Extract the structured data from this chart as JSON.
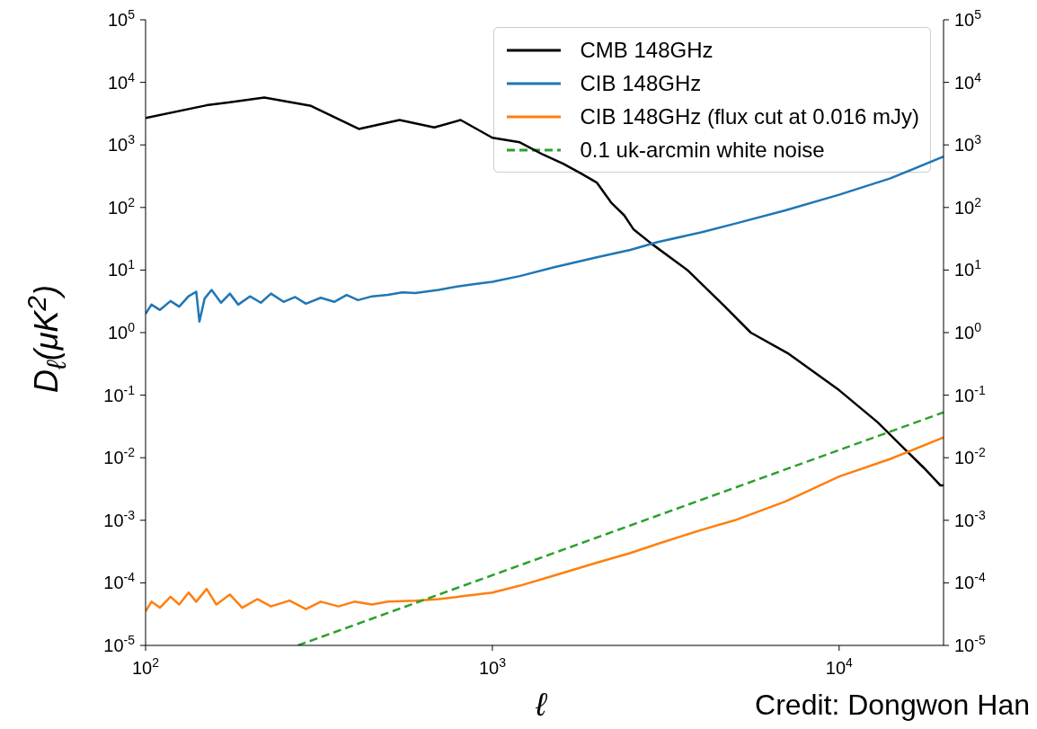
{
  "chart_data": {
    "type": "line",
    "xlabel": "ℓ",
    "ylabel": "D$_{ℓ}$(μK$^{2}$)",
    "xlim": [
      100,
      20000
    ],
    "xticks": [
      {
        "value": 100,
        "label": "10$^{2}$"
      },
      {
        "value": 1000,
        "label": "10$^{3}$"
      },
      {
        "value": 10000,
        "label": "10$^{4}$"
      }
    ],
    "ylim": [
      1e-05,
      100000
    ],
    "yticks": [
      {
        "value": 1e-05,
        "label": "10$^{-5}$"
      },
      {
        "value": 0.0001,
        "label": "10$^{-4}$"
      },
      {
        "value": 0.001,
        "label": "10$^{-3}$"
      },
      {
        "value": 0.01,
        "label": "10$^{-2}$"
      },
      {
        "value": 0.1,
        "label": "10$^{-1}$"
      },
      {
        "value": 1,
        "label": "10$^{0}$"
      },
      {
        "value": 10,
        "label": "10$^{1}$"
      },
      {
        "value": 100,
        "label": "10$^{2}$"
      },
      {
        "value": 1000,
        "label": "10$^{3}$"
      },
      {
        "value": 10000,
        "label": "10$^{4}$"
      },
      {
        "value": 100000,
        "label": "10$^{5}$"
      }
    ],
    "log": "xy",
    "legend": "top right",
    "series": [
      {
        "name": "CMB 148GHz",
        "color": "#000000",
        "x": [
          100,
          150,
          220,
          300,
          412,
          540,
          680,
          810,
          1000,
          1200,
          1400,
          1600,
          1800,
          2000,
          2200,
          2400,
          2550,
          2860,
          3650,
          4650,
          5560,
          7100,
          10000,
          12900,
          15500,
          17500,
          19600,
          20000
        ],
        "values": [
          2700,
          4300,
          5700,
          4200,
          1800,
          2500,
          1900,
          2500,
          1300,
          1100,
          700,
          500,
          350,
          250,
          120,
          75,
          45,
          27,
          10,
          2.7,
          1,
          0.47,
          0.12,
          0.037,
          0.0135,
          0.007,
          0.0036,
          0.0036
        ]
      },
      {
        "name": "CIB 148GHz",
        "color": "#1f77b4",
        "x": [
          100,
          104,
          110,
          118,
          125,
          133,
          140,
          143,
          148,
          155,
          165,
          175,
          185,
          200,
          215,
          230,
          250,
          270,
          290,
          320,
          350,
          380,
          410,
          450,
          500,
          550,
          600,
          700,
          800,
          900,
          1000,
          1200,
          1500,
          2000,
          2500,
          3000,
          4000,
          5000,
          7000,
          10000,
          14000,
          20000
        ],
        "values": [
          2.0,
          2.8,
          2.3,
          3.2,
          2.6,
          3.8,
          4.5,
          1.5,
          3.5,
          4.8,
          3.0,
          4.2,
          2.8,
          3.8,
          3.0,
          4.2,
          3.1,
          3.7,
          2.9,
          3.6,
          3.1,
          4.0,
          3.3,
          3.8,
          4.0,
          4.4,
          4.3,
          4.8,
          5.5,
          6.0,
          6.5,
          8,
          11,
          16,
          21,
          28,
          40,
          55,
          90,
          160,
          290,
          650
        ]
      },
      {
        "name": "CIB 148GHz (flux cut at 0.016 mJy)",
        "color": "#ff7f0e",
        "x": [
          100,
          104,
          110,
          118,
          125,
          133,
          140,
          150,
          160,
          175,
          190,
          210,
          230,
          260,
          290,
          320,
          360,
          400,
          450,
          500,
          600,
          700,
          800,
          1000,
          1200,
          1500,
          2000,
          2500,
          3000,
          4000,
          5000,
          7000,
          10000,
          14000,
          20000
        ],
        "values": [
          3.5e-05,
          5e-05,
          4e-05,
          6e-05,
          4.5e-05,
          7e-05,
          5e-05,
          8e-05,
          4.5e-05,
          6.5e-05,
          4e-05,
          5.5e-05,
          4.2e-05,
          5.2e-05,
          3.8e-05,
          5e-05,
          4.2e-05,
          5e-05,
          4.5e-05,
          5e-05,
          5.2e-05,
          5.5e-05,
          6e-05,
          7e-05,
          9e-05,
          0.00013,
          0.00021,
          0.0003,
          0.00042,
          0.0007,
          0.001,
          0.002,
          0.005,
          0.0095,
          0.021
        ]
      },
      {
        "name": "0.1 uk-arcmin white noise",
        "color": "#2ca02c",
        "line_style": "dashed",
        "x": [
          275,
          20000
        ],
        "values": [
          1e-05,
          0.053
        ]
      }
    ],
    "annotations": [
      "Credit: Dongwon Han"
    ]
  }
}
